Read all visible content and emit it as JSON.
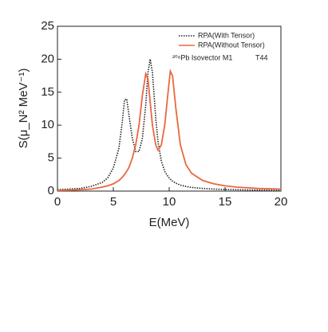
{
  "chart_data": {
    "type": "line",
    "x_label": "E(MeV)",
    "y_label": "S(μ_N² MeV⁻¹)",
    "annotation": "²⁰⁸Pb  Isovector M1",
    "annotation2": "T44",
    "x": [
      0,
      1,
      2,
      3,
      4,
      4.5,
      5,
      5.5,
      5.8,
      6,
      6.2,
      6.4,
      6.7,
      7,
      7.3,
      7.6,
      7.9,
      8.1,
      8.3,
      8.5,
      8.8,
      9,
      9.3,
      9.6,
      9.9,
      10.1,
      10.3,
      10.6,
      11,
      11.5,
      12,
      13,
      14,
      15,
      16,
      18,
      20
    ],
    "series": [
      {
        "name": "RPA(With Tensor)",
        "color": "#222222",
        "dash": true,
        "values": [
          0.2,
          0.3,
          0.4,
          0.7,
          1.3,
          2.0,
          3.5,
          6.5,
          10.5,
          13.8,
          14.0,
          11.5,
          8,
          6,
          6,
          8,
          13,
          18,
          20,
          18,
          11,
          7.5,
          4.5,
          3,
          2.2,
          1.8,
          1.5,
          1.2,
          0.9,
          0.7,
          0.55,
          0.4,
          0.3,
          0.25,
          0.2,
          0.15,
          0.1
        ]
      },
      {
        "name": "RPA(Without Tensor)",
        "color": "#e8683f",
        "dash": false,
        "values": [
          0.1,
          0.15,
          0.2,
          0.3,
          0.6,
          0.8,
          1.1,
          1.6,
          2.1,
          2.5,
          3,
          3.6,
          5,
          7,
          10,
          14.5,
          17.8,
          17,
          13.5,
          10,
          7,
          6.2,
          7,
          10,
          15,
          18.2,
          17.5,
          12.5,
          7,
          4,
          2.7,
          1.6,
          1.1,
          0.8,
          0.6,
          0.4,
          0.3
        ]
      }
    ],
    "xlim": [
      0,
      20
    ],
    "xticks": [
      0,
      5,
      10,
      15,
      20
    ],
    "ylim": [
      0,
      25
    ],
    "yticks": [
      0,
      5,
      10,
      15,
      20,
      25
    ],
    "legend": "upper right"
  }
}
